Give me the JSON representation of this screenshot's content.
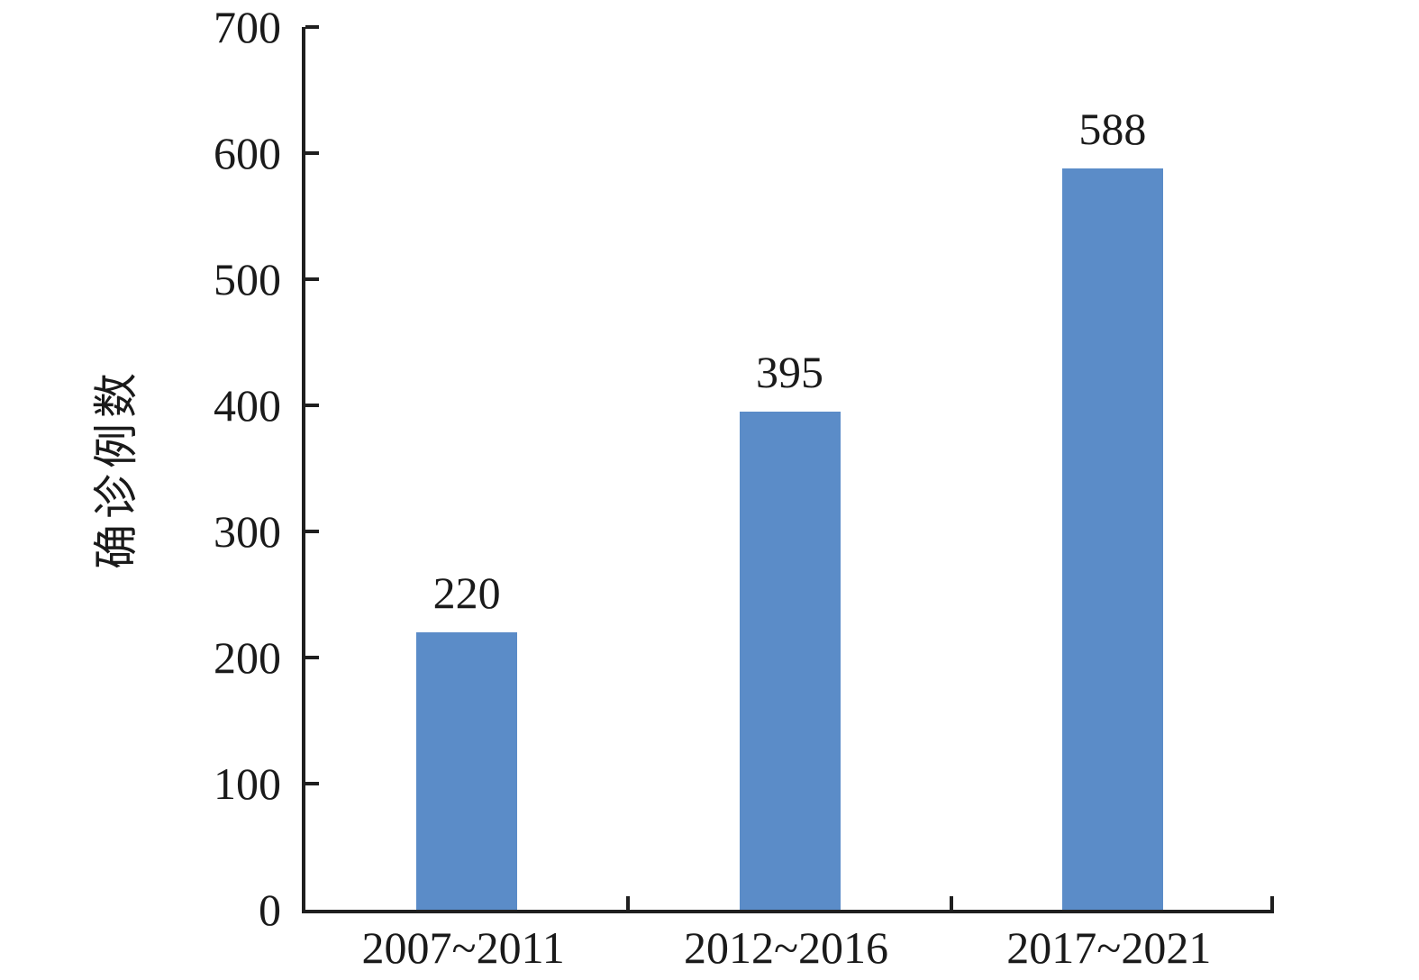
{
  "chart_data": {
    "type": "bar",
    "categories": [
      "2007~2011",
      "2012~2016",
      "2017~2021"
    ],
    "values": [
      220,
      395,
      588
    ],
    "value_labels": [
      "220",
      "395",
      "588"
    ],
    "title": "",
    "xlabel": "",
    "ylabel": "确诊例数",
    "ylim": [
      0,
      700
    ],
    "yticks": [
      0,
      100,
      200,
      300,
      400,
      500,
      600,
      700
    ],
    "grid": false,
    "legend_position": "none",
    "bar_color": "#5B8CC8",
    "axis_color": "#1F1F1F",
    "text_color": "#1A1A1A"
  }
}
